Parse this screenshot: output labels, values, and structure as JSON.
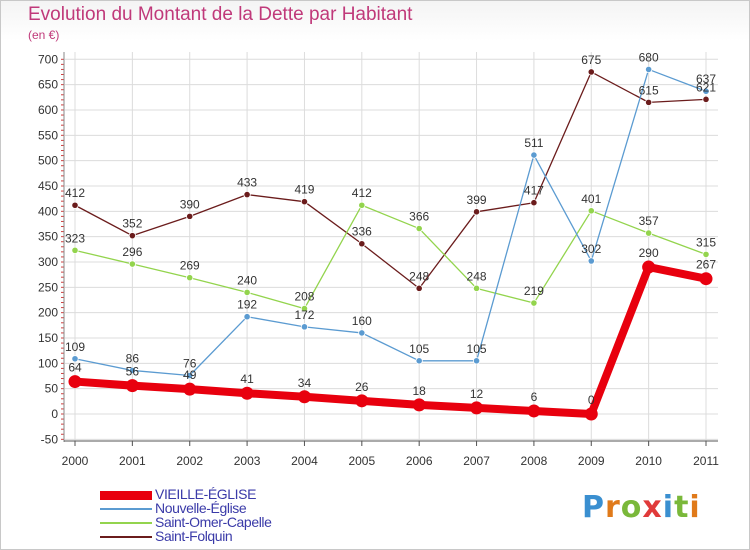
{
  "title": "Evolution du Montant de la Dette par Habitant",
  "subtitle": "(en €)",
  "logo": {
    "letters": [
      "P",
      "r",
      "o",
      "x",
      "i",
      "t",
      "i"
    ],
    "colors": [
      "#3a8fd0",
      "#e07a1a",
      "#7ab83a",
      "#e03a3a",
      "#3a8fd0",
      "#7ab83a",
      "#e07a1a"
    ]
  },
  "chart_data": {
    "type": "line",
    "title": "Evolution du Montant de la Dette par Habitant",
    "ylabel": "(en €)",
    "xlabel": "",
    "x": [
      "2000",
      "2001",
      "2002",
      "2003",
      "2004",
      "2005",
      "2006",
      "2007",
      "2008",
      "2009",
      "2010",
      "2011"
    ],
    "ylim": [
      -50,
      700
    ],
    "yticks": [
      -50,
      0,
      50,
      100,
      150,
      200,
      250,
      300,
      350,
      400,
      450,
      500,
      550,
      600,
      650,
      700
    ],
    "grid": true,
    "legend_position": "bottom-left",
    "series": [
      {
        "name": "VIEILLE-ÉGLISE",
        "color": "#e8000e",
        "emphasis": true,
        "values": [
          64,
          56,
          49,
          41,
          34,
          26,
          18,
          12,
          6,
          0,
          290,
          267
        ],
        "labels": [
          "64",
          "56",
          "49",
          "41",
          "34",
          "26",
          "18",
          "12",
          "6",
          "0",
          "290",
          "267"
        ]
      },
      {
        "name": "Nouvelle-Église",
        "color": "#5b9bd1",
        "values": [
          109,
          86,
          76,
          192,
          172,
          160,
          105,
          105,
          511,
          302,
          680,
          637
        ],
        "labels": [
          "109",
          "86",
          "76",
          "192",
          "172",
          "160",
          "105",
          "105",
          "511",
          "302",
          "680",
          "637"
        ]
      },
      {
        "name": "Saint-Omer-Capelle",
        "color": "#93d44d",
        "values": [
          323,
          296,
          269,
          240,
          208,
          412,
          366,
          248,
          219,
          401,
          357,
          315
        ],
        "labels": [
          "323",
          "296",
          "269",
          "240",
          "208",
          "412",
          "366",
          "248",
          "219",
          "401",
          "357",
          "315"
        ]
      },
      {
        "name": "Saint-Folquin",
        "color": "#6b1c1c",
        "values": [
          412,
          352,
          390,
          433,
          419,
          336,
          248,
          399,
          417,
          675,
          615,
          621
        ],
        "labels": [
          "412",
          "352",
          "390",
          "433",
          "419",
          "336",
          "248",
          "399",
          "417",
          "675",
          "615",
          "621"
        ]
      }
    ]
  }
}
